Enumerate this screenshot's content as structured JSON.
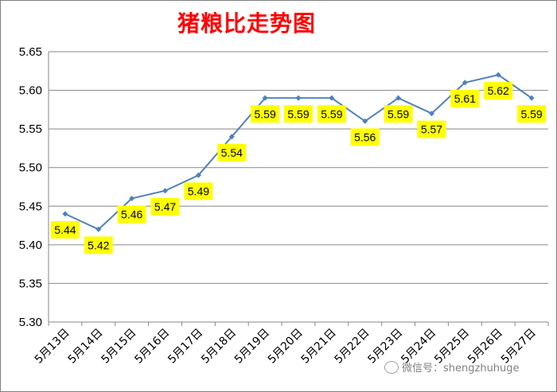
{
  "chart_data": {
    "type": "line",
    "title": "猪粮比走势图",
    "categories": [
      "5月13日",
      "5月14日",
      "5月15日",
      "5月16日",
      "5月17日",
      "5月18日",
      "5月19日",
      "5月20日",
      "5月21日",
      "5月22日",
      "5月23日",
      "5月24日",
      "5月25日",
      "5月26日",
      "5月27日"
    ],
    "series": [
      {
        "values": [
          5.44,
          5.42,
          5.46,
          5.47,
          5.49,
          5.54,
          5.59,
          5.59,
          5.59,
          5.56,
          5.59,
          5.57,
          5.61,
          5.62,
          5.59
        ]
      }
    ],
    "data_labels": [
      "5.44",
      "5.42",
      "5.46",
      "5.47",
      "5.49",
      "5.54",
      "5.59",
      "5.59",
      "5.59",
      "5.56",
      "5.59",
      "5.57",
      "5.61",
      "5.62",
      "5.59"
    ],
    "y_ticks": [
      "5.30",
      "5.35",
      "5.40",
      "5.45",
      "5.50",
      "5.55",
      "5.60",
      "5.65"
    ],
    "ylim": [
      5.3,
      5.65
    ],
    "grid": "horizontal",
    "line_color": "#4f81bd",
    "label_bg": "#ffff00"
  },
  "watermark": "微信号：shengzhuhuge"
}
